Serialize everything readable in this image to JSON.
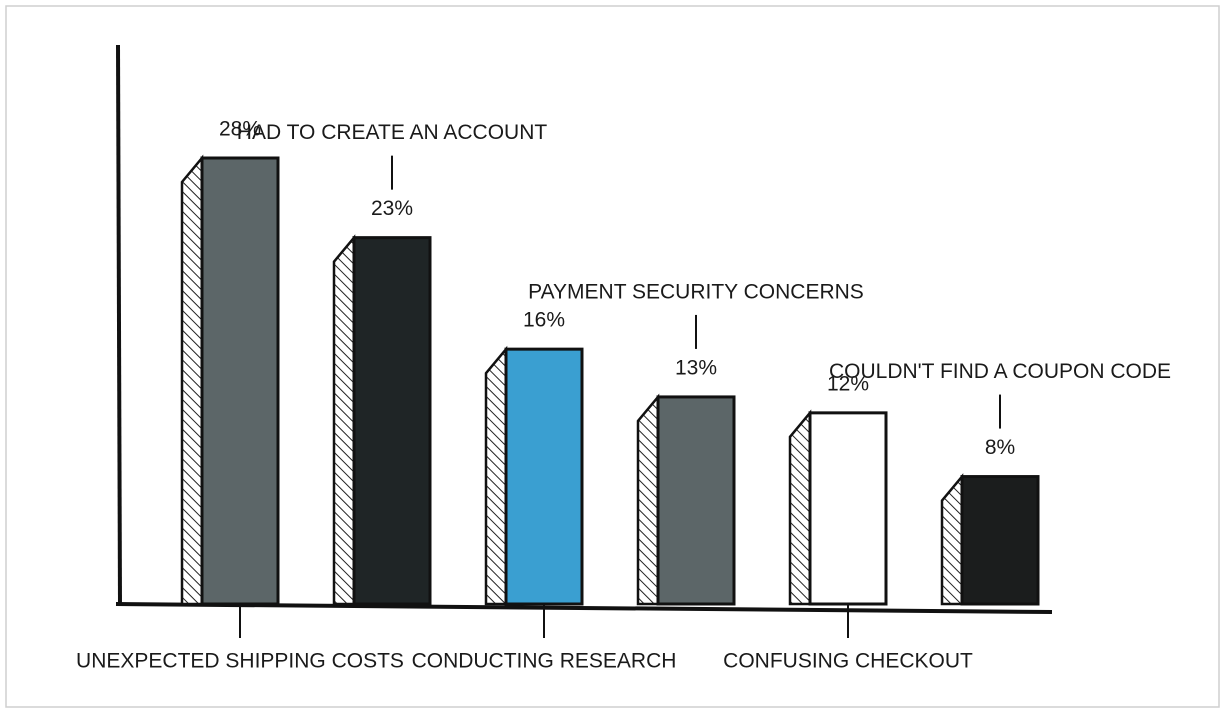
{
  "chart_data": {
    "type": "bar",
    "categories": [
      "UNEXPECTED SHIPPING COSTS",
      "HAD TO CREATE AN ACCOUNT",
      "CONDUCTING RESEARCH",
      "PAYMENT SECURITY CONCERNS",
      "CONFUSING CHECKOUT",
      "COULDN'T FIND A COUPON CODE"
    ],
    "values": [
      28,
      23,
      16,
      13,
      12,
      8
    ],
    "value_labels": [
      "28%",
      "23%",
      "16%",
      "13%",
      "12%",
      "8%"
    ],
    "colors": [
      "#5c6668",
      "#1f2526",
      "#3a9fd1",
      "#5c6668",
      "#ffffff",
      "#1b1d1d"
    ]
  }
}
